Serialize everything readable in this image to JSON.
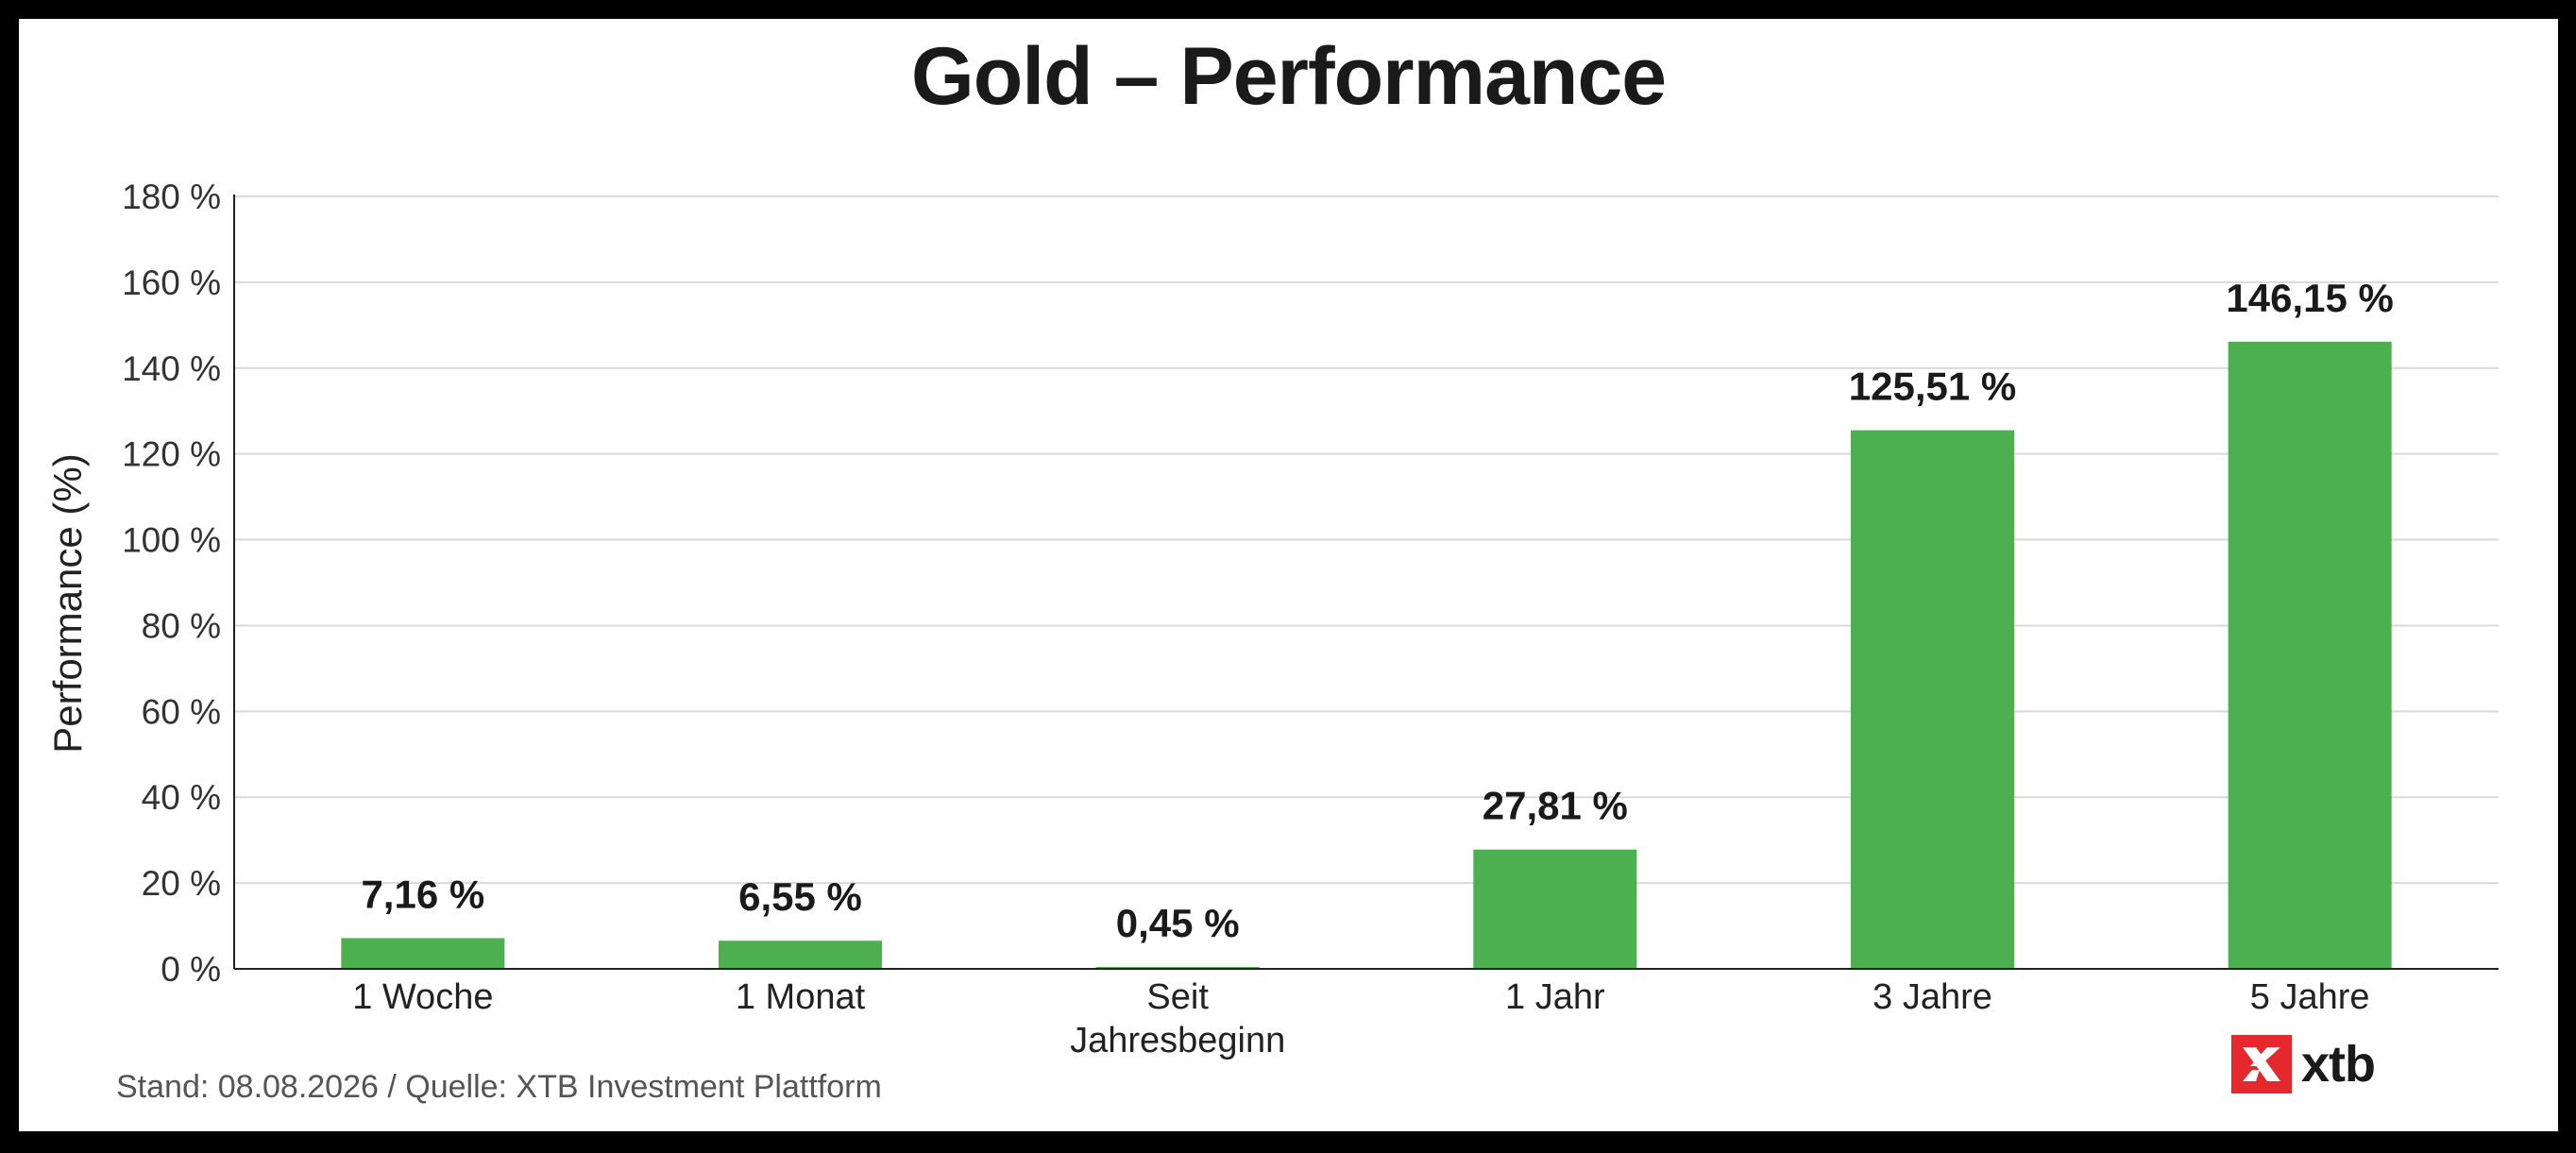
{
  "chart_data": {
    "type": "bar",
    "title": "Gold – Performance",
    "ylabel": "Performance (%)",
    "xlabel": "",
    "categories": [
      [
        "1 Woche"
      ],
      [
        "1 Monat"
      ],
      [
        "Seit",
        "Jahresbeginn"
      ],
      [
        "1 Jahr"
      ],
      [
        "3 Jahre"
      ],
      [
        "5 Jahre"
      ]
    ],
    "values": [
      7.16,
      6.55,
      0.45,
      27.81,
      125.51,
      146.15
    ],
    "value_labels": [
      "7,16 %",
      "6,55 %",
      "0,45 %",
      "27,81 %",
      "125,51 %",
      "146,15 %"
    ],
    "ylim": [
      0,
      180
    ],
    "yticks": [
      0,
      20,
      40,
      60,
      80,
      100,
      120,
      140,
      160,
      180
    ],
    "ytick_labels": [
      "0 %",
      "20 %",
      "40 %",
      "60 %",
      "80 %",
      "100 %",
      "120 %",
      "140 %",
      "160 %",
      "180 %"
    ],
    "grid": true,
    "bar_color": "#4caf50"
  },
  "footer": {
    "source": "Stand: 08.08.2026 / Quelle: XTB Investment Plattform"
  },
  "logo": {
    "text": "xtb",
    "color": "#e5282c"
  }
}
